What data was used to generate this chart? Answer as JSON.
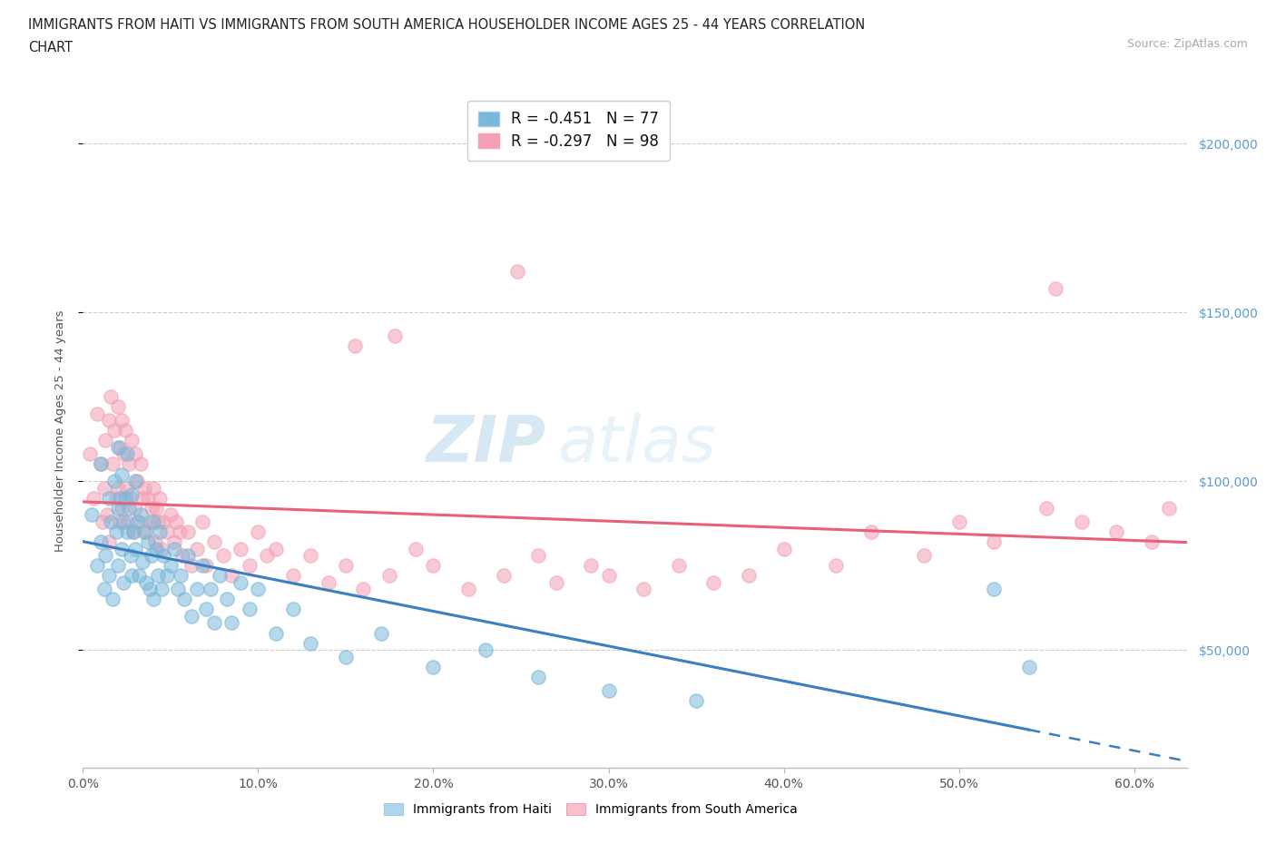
{
  "title_line1": "IMMIGRANTS FROM HAITI VS IMMIGRANTS FROM SOUTH AMERICA HOUSEHOLDER INCOME AGES 25 - 44 YEARS CORRELATION",
  "title_line2": "CHART",
  "source_text": "Source: ZipAtlas.com",
  "ylabel": "Householder Income Ages 25 - 44 years",
  "xlabel_ticks": [
    "0.0%",
    "10.0%",
    "20.0%",
    "30.0%",
    "40.0%",
    "50.0%",
    "60.0%"
  ],
  "xlabel_vals": [
    0.0,
    0.1,
    0.2,
    0.3,
    0.4,
    0.5,
    0.6
  ],
  "ytick_labels": [
    "$50,000",
    "$100,000",
    "$150,000",
    "$200,000"
  ],
  "ytick_vals": [
    50000,
    100000,
    150000,
    200000
  ],
  "xmin": 0.0,
  "xmax": 0.63,
  "ymin": 15000,
  "ymax": 215000,
  "legend_R_haiti": "-0.451",
  "legend_N_haiti": "77",
  "legend_R_sa": "-0.297",
  "legend_N_sa": "98",
  "haiti_color": "#7ab8d9",
  "sa_color": "#f4a0b5",
  "haiti_line_color": "#3a7fc1",
  "sa_line_color": "#e8607a",
  "watermark_zip": "ZIP",
  "watermark_atlas": "atlas",
  "haiti_scatter_x": [
    0.005,
    0.008,
    0.01,
    0.01,
    0.012,
    0.013,
    0.015,
    0.015,
    0.016,
    0.017,
    0.018,
    0.019,
    0.02,
    0.02,
    0.02,
    0.021,
    0.022,
    0.022,
    0.023,
    0.023,
    0.024,
    0.025,
    0.025,
    0.026,
    0.027,
    0.028,
    0.028,
    0.029,
    0.03,
    0.03,
    0.031,
    0.032,
    0.033,
    0.034,
    0.035,
    0.036,
    0.037,
    0.038,
    0.039,
    0.04,
    0.04,
    0.042,
    0.043,
    0.044,
    0.045,
    0.046,
    0.048,
    0.05,
    0.052,
    0.054,
    0.056,
    0.058,
    0.06,
    0.062,
    0.065,
    0.068,
    0.07,
    0.073,
    0.075,
    0.078,
    0.082,
    0.085,
    0.09,
    0.095,
    0.1,
    0.11,
    0.12,
    0.13,
    0.15,
    0.17,
    0.2,
    0.23,
    0.26,
    0.3,
    0.35,
    0.52,
    0.54
  ],
  "haiti_scatter_y": [
    90000,
    75000,
    105000,
    82000,
    68000,
    78000,
    95000,
    72000,
    88000,
    65000,
    100000,
    85000,
    110000,
    92000,
    75000,
    95000,
    102000,
    80000,
    88000,
    70000,
    95000,
    108000,
    85000,
    92000,
    78000,
    96000,
    72000,
    85000,
    100000,
    80000,
    88000,
    72000,
    90000,
    76000,
    85000,
    70000,
    82000,
    68000,
    78000,
    88000,
    65000,
    80000,
    72000,
    85000,
    68000,
    78000,
    72000,
    75000,
    80000,
    68000,
    72000,
    65000,
    78000,
    60000,
    68000,
    75000,
    62000,
    68000,
    58000,
    72000,
    65000,
    58000,
    70000,
    62000,
    68000,
    55000,
    62000,
    52000,
    48000,
    55000,
    45000,
    50000,
    42000,
    38000,
    35000,
    68000,
    45000
  ],
  "sa_scatter_x": [
    0.004,
    0.006,
    0.008,
    0.01,
    0.011,
    0.012,
    0.013,
    0.014,
    0.015,
    0.015,
    0.016,
    0.017,
    0.018,
    0.019,
    0.02,
    0.02,
    0.021,
    0.021,
    0.022,
    0.022,
    0.023,
    0.024,
    0.025,
    0.025,
    0.026,
    0.027,
    0.028,
    0.029,
    0.03,
    0.03,
    0.031,
    0.032,
    0.033,
    0.034,
    0.035,
    0.036,
    0.037,
    0.038,
    0.039,
    0.04,
    0.041,
    0.042,
    0.043,
    0.044,
    0.045,
    0.046,
    0.048,
    0.05,
    0.052,
    0.053,
    0.055,
    0.057,
    0.06,
    0.062,
    0.065,
    0.068,
    0.07,
    0.075,
    0.08,
    0.085,
    0.09,
    0.095,
    0.1,
    0.105,
    0.11,
    0.12,
    0.13,
    0.14,
    0.15,
    0.16,
    0.175,
    0.19,
    0.2,
    0.22,
    0.24,
    0.26,
    0.27,
    0.29,
    0.3,
    0.32,
    0.34,
    0.36,
    0.38,
    0.4,
    0.43,
    0.45,
    0.48,
    0.5,
    0.52,
    0.55,
    0.57,
    0.59,
    0.61,
    0.248,
    0.178,
    0.155,
    0.555,
    0.62
  ],
  "sa_scatter_y": [
    108000,
    95000,
    120000,
    105000,
    88000,
    98000,
    112000,
    90000,
    118000,
    82000,
    125000,
    105000,
    115000,
    95000,
    122000,
    98000,
    110000,
    88000,
    118000,
    92000,
    108000,
    115000,
    98000,
    88000,
    105000,
    95000,
    112000,
    85000,
    108000,
    92000,
    100000,
    88000,
    105000,
    95000,
    98000,
    85000,
    95000,
    88000,
    92000,
    98000,
    82000,
    92000,
    88000,
    95000,
    80000,
    88000,
    85000,
    90000,
    82000,
    88000,
    85000,
    78000,
    85000,
    75000,
    80000,
    88000,
    75000,
    82000,
    78000,
    72000,
    80000,
    75000,
    85000,
    78000,
    80000,
    72000,
    78000,
    70000,
    75000,
    68000,
    72000,
    80000,
    75000,
    68000,
    72000,
    78000,
    70000,
    75000,
    72000,
    68000,
    75000,
    70000,
    72000,
    80000,
    75000,
    85000,
    78000,
    88000,
    82000,
    92000,
    88000,
    85000,
    82000,
    162000,
    143000,
    140000,
    157000,
    92000
  ]
}
